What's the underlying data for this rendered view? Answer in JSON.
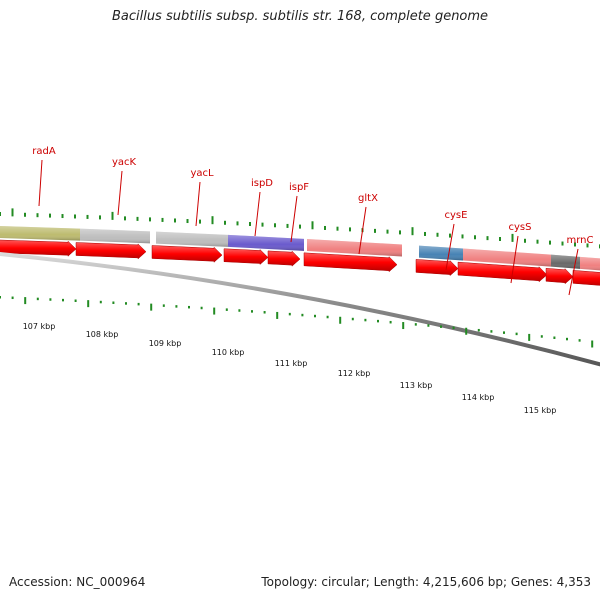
{
  "header": {
    "title": "Bacillus subtilis subsp. subtilis str. 168, complete genome"
  },
  "footer": {
    "accession": "Accession: NC_000964",
    "summary": "Topology: circular; Length: 4,215,606 bp; Genes: 4,353"
  },
  "colors": {
    "cds_arrow": "#ff0000",
    "label": "#cc0000",
    "tick": "#228B22",
    "backbone": "#777777"
  },
  "genes": [
    {
      "label": "radA",
      "color": "#bdbb6f"
    },
    {
      "label": "yacK",
      "color": "#bdbdbd"
    },
    {
      "label": "yacL",
      "color": "#bdbdbd"
    },
    {
      "label": "ispD",
      "color": "#6a5acd"
    },
    {
      "label": "ispF",
      "color": ""
    },
    {
      "label": "gltX",
      "color": "#f08080"
    },
    {
      "label": "cysE",
      "color": "#4682b4"
    },
    {
      "label": "cysS",
      "color": "#f08080"
    },
    {
      "label": "mrnC",
      "color": "#696969"
    }
  ],
  "kbp_labels": [
    "107 kbp",
    "108 kbp",
    "109 kbp",
    "110 kbp",
    "111 kbp",
    "112 kbp",
    "113 kbp",
    "114 kbp",
    "115 kbp"
  ]
}
